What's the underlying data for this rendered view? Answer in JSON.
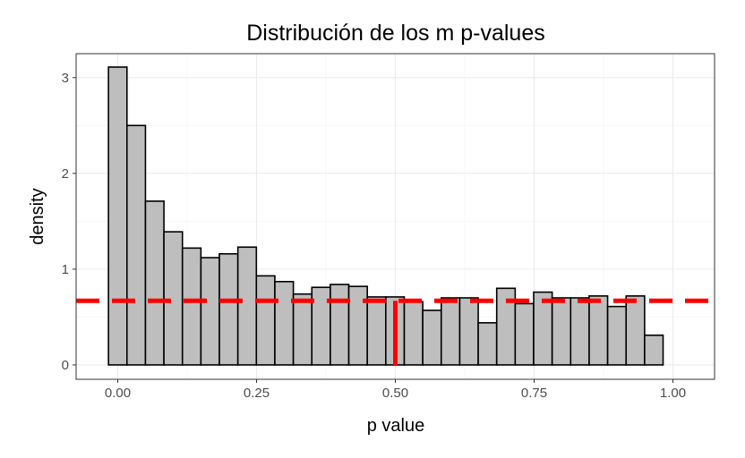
{
  "chart_data": {
    "type": "bar",
    "title": "Distribución de los m p-values",
    "xlabel": "p value",
    "ylabel": "density",
    "xlim": [
      -0.075,
      1.075
    ],
    "ylim": [
      -0.15,
      3.25
    ],
    "x_ticks": [
      0.0,
      0.25,
      0.5,
      0.75,
      1.0
    ],
    "x_tick_labels": [
      "0.00",
      "0.25",
      "0.50",
      "0.75",
      "1.00"
    ],
    "y_ticks": [
      0,
      1,
      2,
      3
    ],
    "y_tick_labels": [
      "0",
      "1",
      "2",
      "3"
    ],
    "grid": true,
    "bin_width": 0.0333,
    "bins_start": -0.0167,
    "values": [
      3.11,
      2.5,
      1.71,
      1.39,
      1.22,
      1.12,
      1.16,
      1.23,
      0.93,
      0.87,
      0.74,
      0.81,
      0.84,
      0.82,
      0.71,
      0.71,
      0.66,
      0.57,
      0.7,
      0.7,
      0.44,
      0.8,
      0.64,
      0.76,
      0.7,
      0.7,
      0.72,
      0.61,
      0.72,
      0.31
    ],
    "bar_fill": "#bebebe",
    "bar_stroke": "#000000",
    "reference_line": {
      "y": 0.67,
      "style": "dashed",
      "color": "#ff0000"
    },
    "vertical_line": {
      "x": 0.5,
      "y0": 0,
      "y1": 0.67,
      "color": "#ff0000"
    }
  }
}
